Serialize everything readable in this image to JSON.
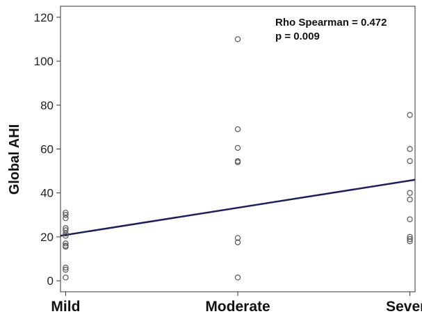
{
  "chart_data": {
    "type": "scatter",
    "title": "",
    "xlabel": "",
    "ylabel": "Global AHI",
    "categories": [
      "Mild",
      "Moderate",
      "Severe"
    ],
    "x_positions": [
      1,
      2,
      3
    ],
    "xlim": [
      0.97,
      3.03
    ],
    "ylim": [
      -5,
      125
    ],
    "yticks": [
      0,
      20,
      40,
      60,
      80,
      100,
      120
    ],
    "grid": false,
    "series": [
      {
        "points": [
          {
            "x": 1,
            "y": 31
          },
          {
            "x": 1,
            "y": 30
          },
          {
            "x": 1,
            "y": 28.5
          },
          {
            "x": 1,
            "y": 24
          },
          {
            "x": 1,
            "y": 23
          },
          {
            "x": 1,
            "y": 21.5
          },
          {
            "x": 1,
            "y": 20.5
          },
          {
            "x": 1,
            "y": 17
          },
          {
            "x": 1,
            "y": 16
          },
          {
            "x": 1,
            "y": 15.5
          },
          {
            "x": 1,
            "y": 6
          },
          {
            "x": 1,
            "y": 5
          },
          {
            "x": 1,
            "y": 1.5
          },
          {
            "x": 2,
            "y": 110
          },
          {
            "x": 2,
            "y": 69
          },
          {
            "x": 2,
            "y": 60.5
          },
          {
            "x": 2,
            "y": 54.5
          },
          {
            "x": 2,
            "y": 54
          },
          {
            "x": 2,
            "y": 19.5
          },
          {
            "x": 2,
            "y": 17.5
          },
          {
            "x": 2,
            "y": 1.5
          },
          {
            "x": 3,
            "y": 75.5
          },
          {
            "x": 3,
            "y": 60
          },
          {
            "x": 3,
            "y": 54.5
          },
          {
            "x": 3,
            "y": 40
          },
          {
            "x": 3,
            "y": 37
          },
          {
            "x": 3,
            "y": 28
          },
          {
            "x": 3,
            "y": 20
          },
          {
            "x": 3,
            "y": 19
          },
          {
            "x": 3,
            "y": 18
          }
        ]
      }
    ],
    "fit_line": {
      "x": [
        0.97,
        3.03
      ],
      "y": [
        20.5,
        46
      ]
    },
    "annotations": [
      "Rho Spearman = 0.472",
      "p = 0.009"
    ],
    "colors": {
      "points": "#555555",
      "fit_line": "#1f1f5c",
      "axis": "#333333"
    }
  }
}
